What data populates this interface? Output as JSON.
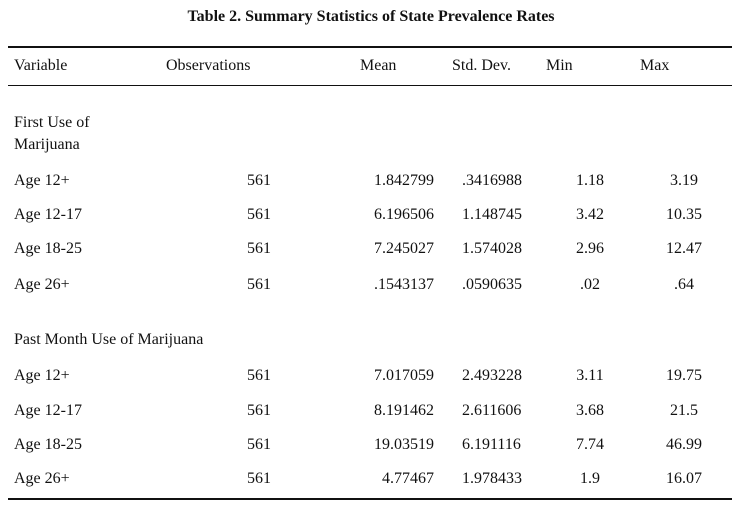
{
  "table": {
    "title": "Table 2. Summary Statistics of State Prevalence Rates",
    "headers": {
      "variable": "Variable",
      "observations": "Observations",
      "mean": "Mean",
      "std": "Std. Dev.",
      "min": "Min",
      "max": "Max"
    },
    "sections": [
      {
        "label_line1": "First Use of",
        "label_line2": "Marijuana",
        "rows": [
          {
            "variable": "Age 12+",
            "obs": "561",
            "mean": "1.842799",
            "std": ".3416988",
            "min": "1.18",
            "max": "3.19"
          },
          {
            "variable": "Age 12-17",
            "obs": "561",
            "mean": "6.196506",
            "std": "1.148745",
            "min": "3.42",
            "max": "10.35"
          },
          {
            "variable": "Age 18-25",
            "obs": "561",
            "mean": "7.245027",
            "std": "1.574028",
            "min": "2.96",
            "max": "12.47"
          },
          {
            "variable": "Age 26+",
            "obs": "561",
            "mean": ".1543137",
            "std": ".0590635",
            "min": ".02",
            "max": ".64"
          }
        ]
      },
      {
        "label_line1": "Past Month Use of Marijuana",
        "rows": [
          {
            "variable": "Age 12+",
            "obs": "561",
            "mean": "7.017059",
            "std": "2.493228",
            "min": "3.11",
            "max": "19.75"
          },
          {
            "variable": "Age 12-17",
            "obs": "561",
            "mean": "8.191462",
            "std": "2.611606",
            "min": "3.68",
            "max": "21.5"
          },
          {
            "variable": "Age 18-25",
            "obs": "561",
            "mean": "19.03519",
            "std": "6.191116",
            "min": "7.74",
            "max": "46.99"
          },
          {
            "variable": "Age 26+",
            "obs": "561",
            "mean": "4.77467",
            "std": "1.978433",
            "min": "1.9",
            "max": "16.07"
          }
        ]
      }
    ]
  }
}
